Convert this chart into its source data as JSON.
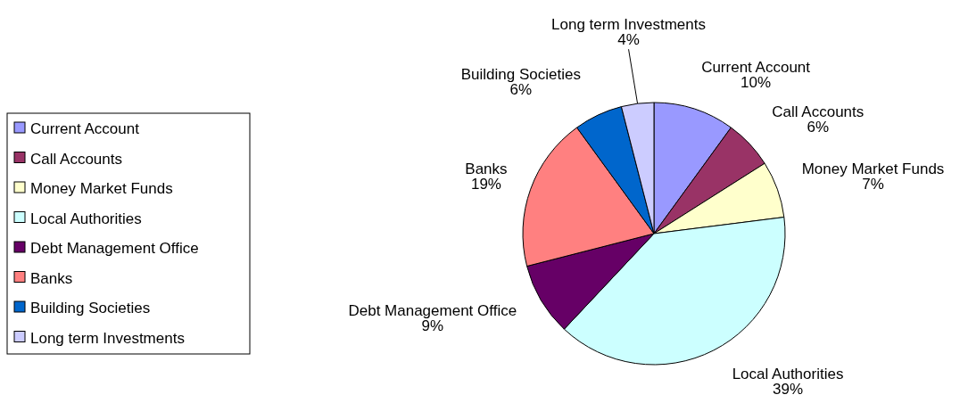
{
  "chart_data": {
    "type": "pie",
    "categories": [
      "Current Account",
      "Call Accounts",
      "Money Market Funds",
      "Local Authorities",
      "Debt Management Office",
      "Banks",
      "Building Societies",
      "Long term Investments"
    ],
    "values": [
      10,
      6,
      7,
      39,
      9,
      19,
      6,
      4
    ],
    "colors": [
      "#9999ff",
      "#993366",
      "#ffffcc",
      "#ccffff",
      "#660066",
      "#ff8080",
      "#0066cc",
      "#ccccff"
    ],
    "value_labels": [
      "10%",
      "6%",
      "7%",
      "39%",
      "9%",
      "19%",
      "6%",
      "4%"
    ],
    "legend": "left"
  }
}
